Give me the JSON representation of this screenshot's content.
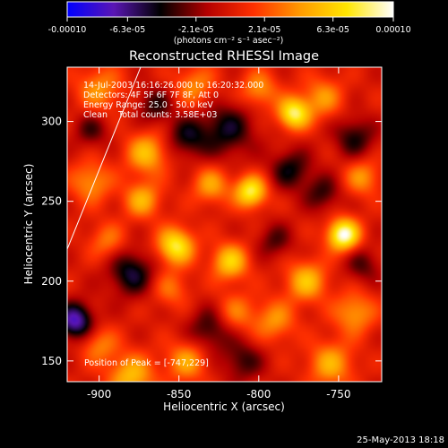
{
  "colorbar": {
    "tick_labels": [
      "-0.00010",
      "-6.3e-05",
      "-2.1e-05",
      "2.1e-05",
      "6.3e-05",
      "0.00010"
    ],
    "tick_values": [
      -0.0001,
      -6.3e-05,
      -2.1e-05,
      2.1e-05,
      6.3e-05,
      0.0001
    ],
    "range": [
      -0.0001,
      0.0001
    ],
    "units_label": "(photons cm⁻² s⁻¹ asec⁻²)",
    "stops": [
      "#0000ff",
      "#5a16b4",
      "#000000",
      "#b40000",
      "#ff3000",
      "#ff9a00",
      "#ffe600",
      "#ffffff"
    ]
  },
  "header": {
    "title": "Reconstructed RHESSI Image",
    "time_range": "14-Jul-2003 16:16:26.000 to 16:20:32.000",
    "detectors": "Detectors: 4F 5F 6F 7F 8F, Att 0",
    "energy_range": "Energy Range: 25.0 - 50.0 keV",
    "clean_info": "Clean    Total counts: 3.58E+03"
  },
  "annotation": {
    "peak": "Position of Peak = [-747,229]"
  },
  "footer": {
    "date": "25-May-2013 18:18"
  },
  "chart_data": {
    "type": "heatmap",
    "title": "Reconstructed RHESSI Image",
    "xlabel": "Heliocentric X (arcsec)",
    "ylabel": "Heliocentric Y (arcsec)",
    "xlim": [
      -920,
      -723
    ],
    "ylim": [
      137,
      334
    ],
    "x_ticks": [
      -900,
      -850,
      -800,
      -750
    ],
    "x_tick_labels": [
      "-900",
      "-850",
      "-800",
      "-750"
    ],
    "y_ticks": [
      150,
      200,
      250,
      300
    ],
    "y_tick_labels": [
      "150",
      "200",
      "250",
      "300"
    ],
    "limb_line": [
      [
        -920,
        220
      ],
      [
        -874,
        334
      ]
    ],
    "peak_position": [
      -747,
      229
    ],
    "blobs": [
      {
        "x": -747,
        "y": 229,
        "v": 1.0,
        "s": 7
      },
      {
        "x": -778,
        "y": 305,
        "v": 0.82,
        "s": 7
      },
      {
        "x": -805,
        "y": 256,
        "v": 0.8,
        "s": 7
      },
      {
        "x": -852,
        "y": 222,
        "v": 0.78,
        "s": 8
      },
      {
        "x": -818,
        "y": 212,
        "v": 0.62,
        "s": 8
      },
      {
        "x": -870,
        "y": 280,
        "v": 0.55,
        "s": 9
      },
      {
        "x": -873,
        "y": 251,
        "v": 0.5,
        "s": 8
      },
      {
        "x": -905,
        "y": 262,
        "v": 0.42,
        "s": 9
      },
      {
        "x": -880,
        "y": 140,
        "v": 0.55,
        "s": 10
      },
      {
        "x": -845,
        "y": 150,
        "v": 0.45,
        "s": 9
      },
      {
        "x": -770,
        "y": 200,
        "v": 0.55,
        "s": 9
      },
      {
        "x": -740,
        "y": 180,
        "v": 0.45,
        "s": 9
      },
      {
        "x": -755,
        "y": 148,
        "v": 0.48,
        "s": 10
      },
      {
        "x": -790,
        "y": 175,
        "v": 0.4,
        "s": 9
      },
      {
        "x": -900,
        "y": 320,
        "v": 0.4,
        "s": 10
      },
      {
        "x": -840,
        "y": 322,
        "v": 0.38,
        "s": 9
      },
      {
        "x": -800,
        "y": 320,
        "v": 0.42,
        "s": 8
      },
      {
        "x": -760,
        "y": 315,
        "v": 0.4,
        "s": 9
      },
      {
        "x": -830,
        "y": 260,
        "v": 0.45,
        "s": 8
      },
      {
        "x": -815,
        "y": 180,
        "v": 0.35,
        "s": 9
      },
      {
        "x": -900,
        "y": 160,
        "v": 0.35,
        "s": 8
      },
      {
        "x": -735,
        "y": 265,
        "v": 0.4,
        "s": 8
      },
      {
        "x": -855,
        "y": 195,
        "v": 0.3,
        "s": 8
      },
      {
        "x": -895,
        "y": 225,
        "v": 0.32,
        "s": 8
      },
      {
        "x": -915,
        "y": 175,
        "v": -0.75,
        "s": 8
      },
      {
        "x": -880,
        "y": 205,
        "v": -0.5,
        "s": 10
      },
      {
        "x": -820,
        "y": 295,
        "v": -0.45,
        "s": 12
      },
      {
        "x": -845,
        "y": 290,
        "v": -0.4,
        "s": 9
      },
      {
        "x": -780,
        "y": 270,
        "v": -0.42,
        "s": 9
      },
      {
        "x": -830,
        "y": 170,
        "v": -0.4,
        "s": 10
      },
      {
        "x": -760,
        "y": 255,
        "v": -0.35,
        "s": 8
      },
      {
        "x": -740,
        "y": 290,
        "v": -0.4,
        "s": 9
      },
      {
        "x": -865,
        "y": 310,
        "v": -0.35,
        "s": 8
      },
      {
        "x": -810,
        "y": 150,
        "v": -0.35,
        "s": 9
      },
      {
        "x": -790,
        "y": 225,
        "v": -0.3,
        "s": 8
      },
      {
        "x": -905,
        "y": 295,
        "v": -0.3,
        "s": 8
      },
      {
        "x": -735,
        "y": 210,
        "v": -0.3,
        "s": 8
      }
    ]
  }
}
